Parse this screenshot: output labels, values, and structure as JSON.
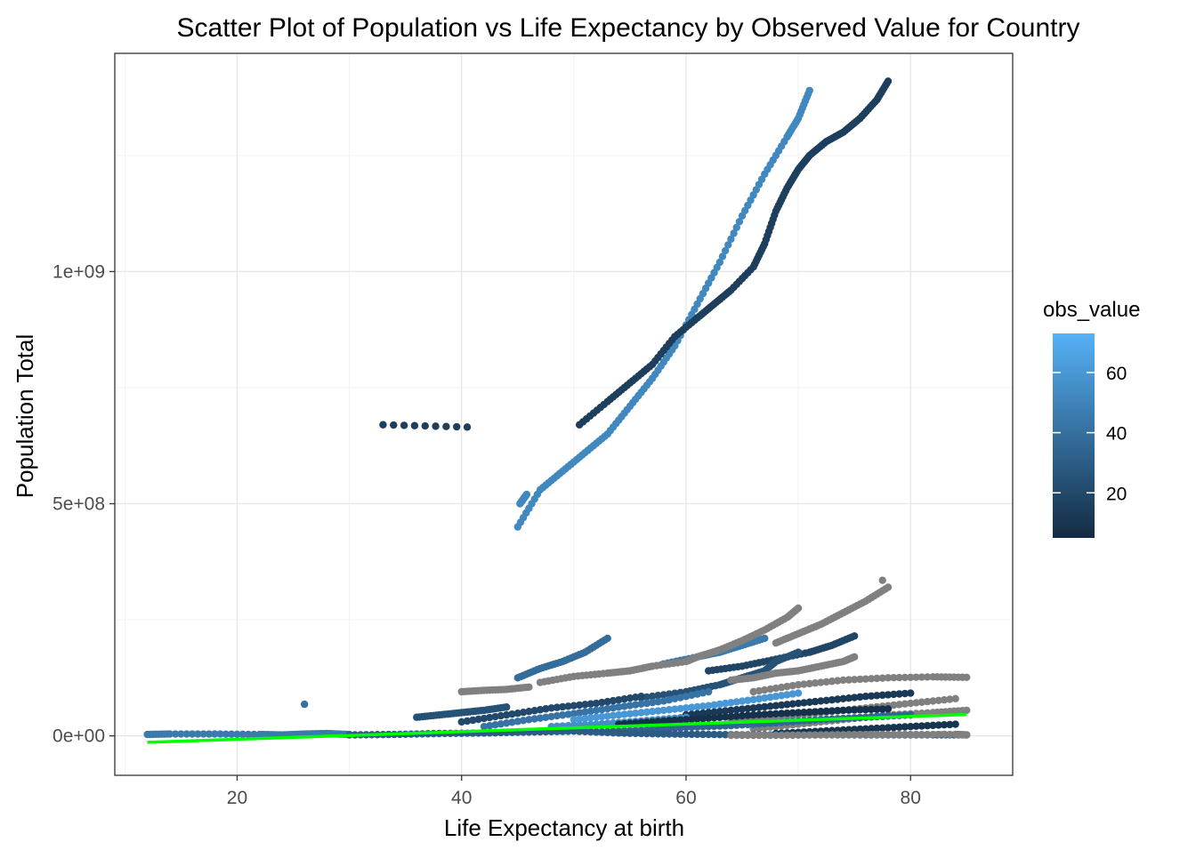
{
  "chart_data": {
    "type": "scatter",
    "title": "Scatter Plot of Population vs Life Expectancy by Observed Value for Country",
    "xlabel": "Life Expectancy at birth",
    "ylabel": "Population Total",
    "xlim": [
      9.1,
      89.1
    ],
    "ylim": [
      -85000000,
      1470000000
    ],
    "x_ticks": [
      20,
      40,
      60,
      80
    ],
    "x_tick_labels": [
      "20",
      "40",
      "60",
      "80"
    ],
    "y_ticks": [
      0,
      500000000,
      1000000000
    ],
    "y_tick_labels": [
      "0e+00",
      "5e+08",
      "1e+09"
    ],
    "grid": true,
    "legend": {
      "title": "obs_value",
      "position": "right",
      "range": [
        5,
        73
      ],
      "ticks": [
        20,
        40,
        60
      ],
      "tick_labels": [
        "20",
        "40",
        "60"
      ],
      "color_low": "#132B43",
      "color_high": "#56B1F7",
      "na_color": "#808080"
    },
    "trend_line": {
      "x": [
        12,
        85
      ],
      "y": [
        -14000000,
        46000000
      ],
      "color": "#00FF00"
    },
    "series": [
      {
        "x": [
          45,
          47,
          49,
          51,
          53,
          55,
          57,
          59,
          61,
          63,
          65,
          67,
          69,
          70,
          71
        ],
        "y": [
          450000000,
          530000000,
          570000000,
          610000000,
          650000000,
          710000000,
          770000000,
          840000000,
          930000000,
          1020000000,
          1120000000,
          1210000000,
          1290000000,
          1330000000,
          1390000000
        ],
        "obs": 52
      },
      {
        "x": [
          45.2,
          45.5,
          45.8
        ],
        "y": [
          500000000,
          510000000,
          520000000
        ],
        "obs": 52
      },
      {
        "x": [
          50.5,
          53,
          55,
          57,
          59,
          61,
          62.5,
          64,
          66,
          67,
          68,
          69,
          70,
          71,
          72.5,
          74,
          75.5,
          77,
          78
        ],
        "y": [
          670000000,
          720000000,
          760000000,
          800000000,
          860000000,
          900000000,
          930000000,
          960000000,
          1010000000,
          1060000000,
          1130000000,
          1180000000,
          1220000000,
          1250000000,
          1280000000,
          1300000000,
          1330000000,
          1370000000,
          1410000000
        ],
        "obs": 15
      },
      {
        "x": [
          33,
          40.5
        ],
        "y": [
          670000000,
          665000000
        ],
        "obs": 15
      },
      {
        "x": [
          45,
          47,
          49,
          51,
          53
        ],
        "y": [
          125000000,
          145000000,
          160000000,
          180000000,
          210000000
        ],
        "obs": 38
      },
      {
        "x": [
          58,
          61,
          63,
          65,
          67
        ],
        "y": [
          155000000,
          170000000,
          180000000,
          195000000,
          210000000
        ],
        "obs": 45
      },
      {
        "x": [
          62,
          65,
          68,
          71,
          73,
          75
        ],
        "y": [
          140000000,
          150000000,
          165000000,
          180000000,
          195000000,
          215000000
        ],
        "obs": 18
      },
      {
        "x": [
          56,
          60,
          63,
          65,
          67,
          68,
          70
        ],
        "y": [
          82000000,
          95000000,
          110000000,
          125000000,
          140000000,
          160000000,
          180000000
        ],
        "obs": 25
      },
      {
        "x": [
          47,
          50,
          53,
          55,
          57,
          60,
          61,
          63,
          65,
          67,
          69,
          70
        ],
        "y": [
          115000000,
          128000000,
          135000000,
          140000000,
          150000000,
          160000000,
          170000000,
          185000000,
          205000000,
          228000000,
          255000000,
          275000000
        ],
        "obs": null
      },
      {
        "x": [
          68,
          70,
          72,
          74,
          76,
          78
        ],
        "y": [
          200000000,
          220000000,
          240000000,
          265000000,
          290000000,
          320000000
        ],
        "obs": null
      },
      {
        "x": [
          77.5
        ],
        "y": [
          335000000
        ],
        "obs": null
      },
      {
        "x": [
          64,
          66,
          68,
          70,
          72,
          74,
          75
        ],
        "y": [
          120000000,
          125000000,
          135000000,
          140000000,
          150000000,
          160000000,
          170000000
        ],
        "obs": null
      },
      {
        "x": [
          66,
          70,
          74,
          78,
          82,
          85
        ],
        "y": [
          95000000,
          110000000,
          120000000,
          125000000,
          127000000,
          126000000
        ],
        "obs": null
      },
      {
        "x": [
          40,
          44,
          48,
          52,
          56
        ],
        "y": [
          30000000,
          45000000,
          60000000,
          70000000,
          85000000
        ],
        "obs": 20
      },
      {
        "x": [
          42,
          46,
          50,
          54,
          58,
          62
        ],
        "y": [
          20000000,
          35000000,
          48000000,
          62000000,
          75000000,
          95000000
        ],
        "obs": 42
      },
      {
        "x": [
          50,
          54,
          58,
          62,
          66,
          70
        ],
        "y": [
          35000000,
          45000000,
          55000000,
          65000000,
          78000000,
          92000000
        ],
        "obs": 60
      },
      {
        "x": [
          60,
          64,
          68,
          72,
          76,
          80
        ],
        "y": [
          45000000,
          55000000,
          65000000,
          75000000,
          85000000,
          92000000
        ],
        "obs": 12
      },
      {
        "x": [
          64,
          68,
          72,
          76,
          80,
          84
        ],
        "y": [
          30000000,
          40000000,
          50000000,
          60000000,
          70000000,
          80000000
        ],
        "obs": null
      },
      {
        "x": [
          66,
          70,
          74,
          78,
          82,
          85
        ],
        "y": [
          15000000,
          25000000,
          35000000,
          45000000,
          50000000,
          55000000
        ],
        "obs": null
      },
      {
        "x": [
          68,
          72,
          76,
          80,
          84
        ],
        "y": [
          5000000,
          10000000,
          15000000,
          20000000,
          25000000
        ],
        "obs": 10
      },
      {
        "x": [
          52,
          56,
          60,
          64,
          68,
          72,
          76,
          80
        ],
        "y": [
          8000000,
          12000000,
          18000000,
          22000000,
          28000000,
          35000000,
          40000000,
          45000000
        ],
        "obs": 35
      },
      {
        "x": [
          12,
          14,
          18,
          22,
          24,
          26,
          28,
          30
        ],
        "y": [
          3000000,
          4000000,
          4000000,
          3000000,
          2000000,
          4000000,
          5000000,
          3000000
        ],
        "obs": 45
      },
      {
        "x": [
          26
        ],
        "y": [
          68000000
        ],
        "obs": 40
      },
      {
        "x": [
          30,
          34,
          38,
          42,
          46,
          50,
          54,
          58,
          62,
          66,
          70,
          74,
          78,
          82,
          85
        ],
        "y": [
          2000000,
          3000000,
          5000000,
          6000000,
          8000000,
          10000000,
          6000000,
          4000000,
          3000000,
          2000000,
          2000000,
          2000000,
          2000000,
          2000000,
          2000000
        ],
        "obs": 30
      },
      {
        "x": [
          64,
          68,
          72,
          76,
          80,
          84,
          85
        ],
        "y": [
          1000000,
          1000000,
          2000000,
          3000000,
          3000000,
          3000000,
          2000000
        ],
        "obs": null
      },
      {
        "x": [
          36,
          38,
          40,
          42,
          44
        ],
        "y": [
          40000000,
          45000000,
          50000000,
          55000000,
          62000000
        ],
        "obs": 25
      },
      {
        "x": [
          40,
          42,
          44,
          46
        ],
        "y": [
          95000000,
          98000000,
          100000000,
          105000000
        ],
        "obs": null
      },
      {
        "x": [
          48,
          52,
          56,
          60
        ],
        "y": [
          20000000,
          25000000,
          32000000,
          40000000
        ],
        "obs": 55
      },
      {
        "x": [
          54,
          58,
          62,
          66,
          70,
          74,
          78
        ],
        "y": [
          25000000,
          32000000,
          38000000,
          45000000,
          50000000,
          55000000,
          58000000
        ],
        "obs": 8
      }
    ]
  }
}
